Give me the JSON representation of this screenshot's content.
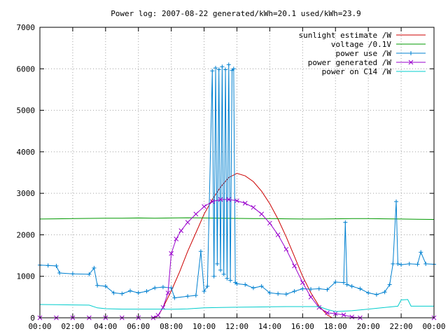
{
  "chart_data": {
    "type": "line",
    "title": "Power log: 2007-08-22 generated/kWh=20.1 used/kWh=23.9",
    "xlabel": "",
    "ylabel": "",
    "xlim": [
      0,
      24
    ],
    "ylim": [
      0,
      7000
    ],
    "grid": true,
    "legend_position": "top-right",
    "x_ticks": [
      "00:00",
      "02:00",
      "04:00",
      "06:00",
      "08:00",
      "10:00",
      "12:00",
      "14:00",
      "16:00",
      "18:00",
      "20:00",
      "22:00",
      "00:00"
    ],
    "y_ticks": [
      "0",
      "1000",
      "2000",
      "3000",
      "4000",
      "5000",
      "6000",
      "7000"
    ],
    "series": [
      {
        "name": "sunlight estimate /W",
        "color": "#cc0000",
        "marker": "none",
        "points": [
          [
            0,
            0
          ],
          [
            6.9,
            0
          ],
          [
            7.2,
            50
          ],
          [
            7.5,
            250
          ],
          [
            8.0,
            650
          ],
          [
            8.5,
            1100
          ],
          [
            9.0,
            1600
          ],
          [
            9.5,
            2050
          ],
          [
            10.0,
            2500
          ],
          [
            10.5,
            2850
          ],
          [
            11.0,
            3150
          ],
          [
            11.5,
            3380
          ],
          [
            12.0,
            3480
          ],
          [
            12.5,
            3420
          ],
          [
            13.0,
            3280
          ],
          [
            13.5,
            3050
          ],
          [
            14.0,
            2750
          ],
          [
            14.5,
            2380
          ],
          [
            15.0,
            1950
          ],
          [
            15.5,
            1480
          ],
          [
            16.0,
            1000
          ],
          [
            16.5,
            600
          ],
          [
            17.0,
            280
          ],
          [
            17.5,
            70
          ],
          [
            17.8,
            0
          ],
          [
            24,
            0
          ]
        ]
      },
      {
        "name": "voltage /0.1V",
        "color": "#009900",
        "marker": "none",
        "points": [
          [
            0,
            2380
          ],
          [
            1,
            2385
          ],
          [
            2,
            2390
          ],
          [
            3,
            2395
          ],
          [
            4,
            2400
          ],
          [
            5,
            2400
          ],
          [
            6,
            2405
          ],
          [
            7,
            2400
          ],
          [
            8,
            2405
          ],
          [
            9,
            2410
          ],
          [
            10,
            2405
          ],
          [
            11,
            2400
          ],
          [
            12,
            2395
          ],
          [
            13,
            2390
          ],
          [
            14,
            2390
          ],
          [
            15,
            2385
          ],
          [
            16,
            2380
          ],
          [
            17,
            2380
          ],
          [
            18,
            2385
          ],
          [
            19,
            2390
          ],
          [
            20,
            2390
          ],
          [
            21,
            2385
          ],
          [
            22,
            2380
          ],
          [
            23,
            2375
          ],
          [
            24,
            2370
          ]
        ]
      },
      {
        "name": "power use /W",
        "color": "#0080d0",
        "marker": "plus",
        "points": [
          [
            0,
            1270
          ],
          [
            0.5,
            1260
          ],
          [
            1,
            1250
          ],
          [
            1.2,
            1080
          ],
          [
            2,
            1060
          ],
          [
            3,
            1050
          ],
          [
            3.3,
            1200
          ],
          [
            3.5,
            780
          ],
          [
            4,
            760
          ],
          [
            4.5,
            600
          ],
          [
            5,
            580
          ],
          [
            5.5,
            650
          ],
          [
            6,
            600
          ],
          [
            6.5,
            640
          ],
          [
            7,
            720
          ],
          [
            7.5,
            740
          ],
          [
            8,
            720
          ],
          [
            8.2,
            480
          ],
          [
            9,
            520
          ],
          [
            9.5,
            540
          ],
          [
            9.8,
            1600
          ],
          [
            10,
            640
          ],
          [
            10.2,
            760
          ],
          [
            10.5,
            5950
          ],
          [
            10.6,
            1000
          ],
          [
            10.7,
            6020
          ],
          [
            10.8,
            1300
          ],
          [
            10.9,
            5980
          ],
          [
            11.0,
            1150
          ],
          [
            11.1,
            6050
          ],
          [
            11.2,
            1050
          ],
          [
            11.3,
            5980
          ],
          [
            11.4,
            950
          ],
          [
            11.5,
            6100
          ],
          [
            11.6,
            900
          ],
          [
            11.7,
            5960
          ],
          [
            11.8,
            6000
          ],
          [
            11.9,
            850
          ],
          [
            12,
            820
          ],
          [
            12.5,
            800
          ],
          [
            13,
            720
          ],
          [
            13.5,
            760
          ],
          [
            14,
            600
          ],
          [
            14.5,
            580
          ],
          [
            15,
            570
          ],
          [
            15.5,
            640
          ],
          [
            16,
            700
          ],
          [
            16.5,
            690
          ],
          [
            17,
            700
          ],
          [
            17.5,
            680
          ],
          [
            18,
            860
          ],
          [
            18.5,
            850
          ],
          [
            18.6,
            2300
          ],
          [
            18.7,
            800
          ],
          [
            19,
            760
          ],
          [
            19.5,
            700
          ],
          [
            20,
            600
          ],
          [
            20.5,
            560
          ],
          [
            21,
            620
          ],
          [
            21.3,
            800
          ],
          [
            21.5,
            1300
          ],
          [
            21.7,
            2800
          ],
          [
            21.8,
            1300
          ],
          [
            22,
            1280
          ],
          [
            22.5,
            1300
          ],
          [
            23,
            1290
          ],
          [
            23.2,
            1580
          ],
          [
            23.5,
            1300
          ],
          [
            24,
            1290
          ]
        ]
      },
      {
        "name": "power generated /W",
        "color": "#9900cc",
        "marker": "cross",
        "points": [
          [
            0,
            0
          ],
          [
            1,
            0
          ],
          [
            2,
            0
          ],
          [
            3,
            0
          ],
          [
            4,
            0
          ],
          [
            5,
            0
          ],
          [
            6,
            0
          ],
          [
            6.9,
            0
          ],
          [
            7.2,
            60
          ],
          [
            7.5,
            250
          ],
          [
            7.8,
            600
          ],
          [
            8.0,
            1550
          ],
          [
            8.3,
            1900
          ],
          [
            8.6,
            2100
          ],
          [
            9.0,
            2300
          ],
          [
            9.5,
            2500
          ],
          [
            10.0,
            2680
          ],
          [
            10.5,
            2800
          ],
          [
            11.0,
            2850
          ],
          [
            11.5,
            2850
          ],
          [
            12.0,
            2820
          ],
          [
            12.5,
            2760
          ],
          [
            13.0,
            2660
          ],
          [
            13.5,
            2500
          ],
          [
            14.0,
            2280
          ],
          [
            14.5,
            2000
          ],
          [
            15.0,
            1650
          ],
          [
            15.5,
            1250
          ],
          [
            16.0,
            850
          ],
          [
            16.5,
            500
          ],
          [
            17.0,
            250
          ],
          [
            17.5,
            120
          ],
          [
            18.0,
            100
          ],
          [
            18.5,
            70
          ],
          [
            19,
            20
          ],
          [
            19.5,
            0
          ],
          [
            24,
            0
          ]
        ]
      },
      {
        "name": "power on C14 /W",
        "color": "#00cccc",
        "marker": "none",
        "points": [
          [
            0,
            320
          ],
          [
            1,
            315
          ],
          [
            2,
            310
          ],
          [
            3,
            305
          ],
          [
            3.5,
            240
          ],
          [
            4,
            220
          ],
          [
            5,
            210
          ],
          [
            6,
            210
          ],
          [
            7,
            210
          ],
          [
            8,
            205
          ],
          [
            9,
            215
          ],
          [
            10,
            240
          ],
          [
            11,
            250
          ],
          [
            12,
            255
          ],
          [
            13,
            260
          ],
          [
            14,
            265
          ],
          [
            15,
            270
          ],
          [
            16,
            270
          ],
          [
            17,
            270
          ],
          [
            17.5,
            200
          ],
          [
            18,
            150
          ],
          [
            19,
            170
          ],
          [
            20,
            210
          ],
          [
            21,
            250
          ],
          [
            21.8,
            280
          ],
          [
            22,
            430
          ],
          [
            22.4,
            440
          ],
          [
            22.6,
            280
          ],
          [
            23,
            280
          ],
          [
            24,
            280
          ]
        ]
      }
    ]
  }
}
